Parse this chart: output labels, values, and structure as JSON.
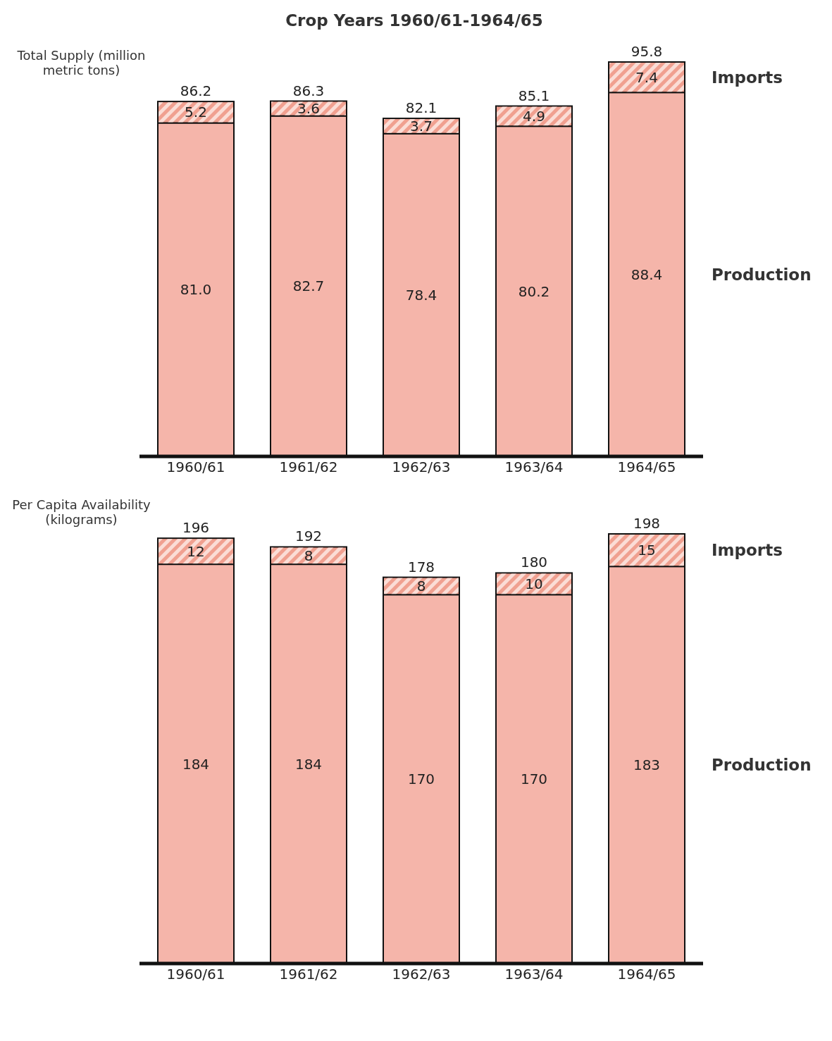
{
  "chart_data": [
    {
      "type": "bar",
      "title": "Crop Years 1960/61-1964/65",
      "ylabel": "Total Supply (million metric tons)",
      "stacked": true,
      "categories": [
        "1960/61",
        "1961/62",
        "1962/63",
        "1963/64",
        "1964/65"
      ],
      "series": [
        {
          "name": "Production",
          "color": "#f5b5aa",
          "values": [
            81.0,
            82.7,
            78.4,
            80.2,
            88.4
          ],
          "value_labels": [
            "81.0",
            "82.7",
            "78.4",
            "80.2",
            "88.4"
          ]
        },
        {
          "name": "Imports",
          "color": "#f0a090",
          "values": [
            5.2,
            3.6,
            3.7,
            4.9,
            7.4
          ],
          "value_labels": [
            "5.2",
            "3.6",
            "3.7",
            "4.9",
            "7.4"
          ]
        }
      ],
      "totals": [
        "86.2",
        "86.3",
        "82.1",
        "85.1",
        "95.8"
      ]
    },
    {
      "type": "bar",
      "ylabel": "Per Capita Availability (kilograms)",
      "stacked": true,
      "categories": [
        "1960/61",
        "1961/62",
        "1962/63",
        "1963/64",
        "1964/65"
      ],
      "series": [
        {
          "name": "Production",
          "color": "#f5b5aa",
          "values": [
            184,
            184,
            170,
            170,
            183
          ],
          "value_labels": [
            "184",
            "184",
            "170",
            "170",
            "183"
          ]
        },
        {
          "name": "Imports",
          "color": "#f0a090",
          "values": [
            12,
            8,
            8,
            10,
            15
          ],
          "value_labels": [
            "12",
            "8",
            "8",
            "10",
            "15"
          ]
        }
      ],
      "totals": [
        "196",
        "192",
        "178",
        "180",
        "198"
      ]
    }
  ]
}
